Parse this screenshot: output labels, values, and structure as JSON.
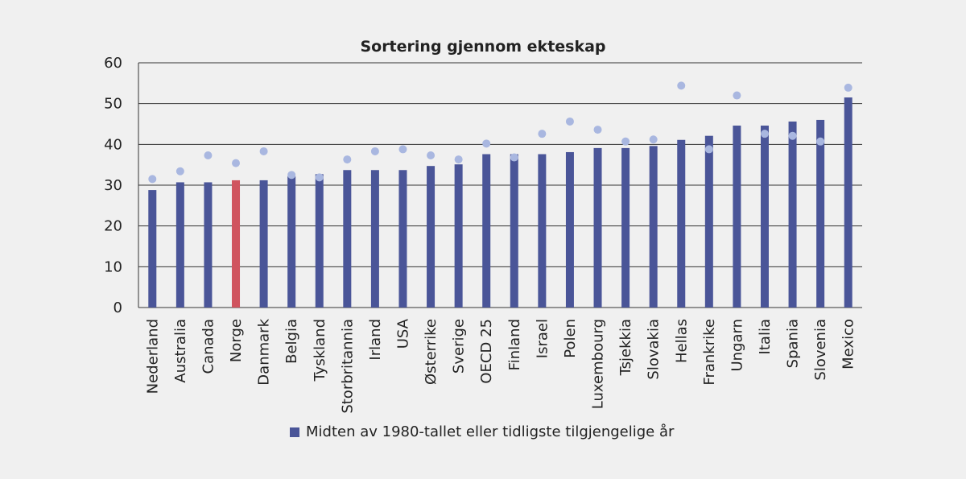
{
  "chart_data": {
    "type": "bar",
    "title": "Sortering gjennom ekteskap",
    "xlabel": "",
    "ylabel": "",
    "ylim": [
      0,
      60
    ],
    "yticks": [
      "0",
      "10",
      "20",
      "30",
      "40",
      "50",
      "60"
    ],
    "grid": true,
    "categories": [
      "Nederland",
      "Australia",
      "Canada",
      "Norge",
      "Danmark",
      "Belgia",
      "Tyskland",
      "Storbritannia",
      "Irland",
      "USA",
      "Østerrike",
      "Sverige",
      "OECD 25",
      "Finland",
      "Israel",
      "Polen",
      "Luxembourg",
      "Tsjekkia",
      "Slovakia",
      "Hellas",
      "Frankrike",
      "Ungarn",
      "Italia",
      "Spania",
      "Slovenia",
      "Mexico"
    ],
    "series": [
      {
        "name": "Midten av 1980-tallet eller tidligste tilgjengelige år",
        "kind": "bar",
        "values": [
          28.8,
          30.7,
          30.7,
          31.2,
          31.2,
          32.2,
          32.7,
          33.7,
          33.7,
          33.7,
          34.7,
          35.1,
          37.6,
          37.6,
          37.6,
          38.1,
          39.1,
          39.1,
          39.6,
          41.1,
          42.1,
          44.6,
          44.6,
          45.6,
          46.0,
          51.5
        ]
      },
      {
        "name": "",
        "kind": "point",
        "values": [
          31.5,
          33.4,
          37.3,
          35.4,
          38.3,
          32.5,
          31.9,
          36.3,
          38.3,
          38.8,
          37.3,
          36.3,
          40.2,
          36.8,
          42.6,
          45.6,
          43.6,
          40.7,
          41.2,
          54.4,
          38.8,
          52.0,
          42.6,
          42.1,
          40.7,
          53.9
        ]
      }
    ],
    "highlight_category": "Norge",
    "colors": {
      "bar": "#4a5598",
      "highlight": "#d0545f",
      "point": "#a9b7e0",
      "grid": "#333333",
      "background": "#f0f0f0"
    },
    "legend_placement": "bottom"
  }
}
